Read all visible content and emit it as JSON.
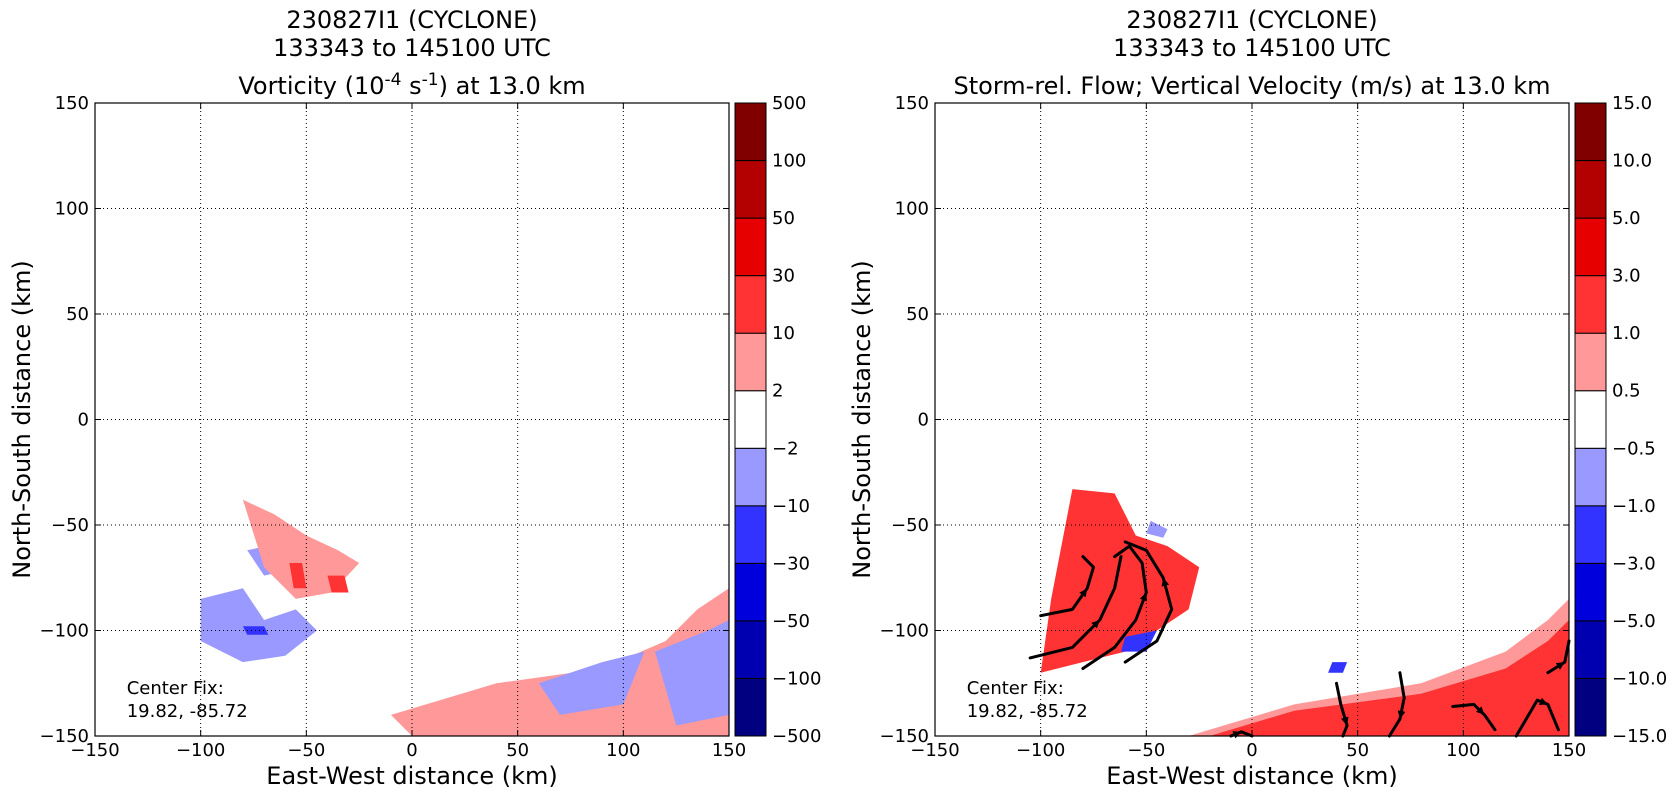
{
  "chart_data": [
    {
      "type": "heatmap",
      "title_lines": [
        "230827I1 (CYCLONE)",
        "133343 to 145100 UTC"
      ],
      "title_var": {
        "prefix": "Vorticity (10",
        "sup1": "-4",
        "mid": " s",
        "sup2": "-1",
        "suffix": ") at 13.0 km"
      },
      "xlabel": "East-West distance (km)",
      "ylabel": "North-South distance (km)",
      "xlim": [
        -150,
        150
      ],
      "ylim": [
        -150,
        150
      ],
      "xticks": [
        -150,
        -100,
        -50,
        0,
        50,
        100,
        150
      ],
      "yticks": [
        -150,
        -100,
        -50,
        0,
        50,
        100,
        150
      ],
      "xtick_labels": [
        "−150",
        "−100",
        "−50",
        "0",
        "50",
        "100",
        "150"
      ],
      "ytick_labels": [
        "−150",
        "−100",
        "−50",
        "0",
        "50",
        "100",
        "150"
      ],
      "grid": true,
      "annotation": [
        "Center Fix:",
        "19.82, -85.72"
      ],
      "colorbar": {
        "labels": [
          "−500",
          "−100",
          "−50",
          "−30",
          "−10",
          "−2",
          "2",
          "10",
          "30",
          "50",
          "100",
          "500"
        ],
        "colors": [
          "#000080",
          "#0000b0",
          "#0000dd",
          "#3333ff",
          "#9999ff",
          "#ffffff",
          "#ff9999",
          "#ff3333",
          "#e60000",
          "#b30000",
          "#800000"
        ]
      },
      "regions": [
        {
          "level": "neg-light",
          "x": [
            -100,
            -80,
            -70,
            -55,
            -45,
            -60,
            -80,
            -100
          ],
          "y": [
            -85,
            -80,
            -95,
            -90,
            -100,
            -112,
            -115,
            -105
          ]
        },
        {
          "level": "neg-light",
          "x": [
            -78,
            -60,
            -52,
            -70
          ],
          "y": [
            -62,
            -58,
            -70,
            -74
          ]
        },
        {
          "level": "pos-light",
          "x": [
            -80,
            -65,
            -50,
            -35,
            -25,
            -38,
            -55,
            -70
          ],
          "y": [
            -38,
            -45,
            -55,
            -62,
            -68,
            -82,
            -85,
            -70
          ]
        },
        {
          "level": "pos-mid",
          "x": [
            -58,
            -52,
            -50,
            -56
          ],
          "y": [
            -68,
            -68,
            -80,
            -80
          ]
        },
        {
          "level": "pos-mid",
          "x": [
            -40,
            -32,
            -30,
            -38
          ],
          "y": [
            -74,
            -74,
            -82,
            -82
          ]
        },
        {
          "level": "neg-mid",
          "x": [
            -80,
            -70,
            -68,
            -78
          ],
          "y": [
            -98,
            -98,
            -102,
            -102
          ]
        },
        {
          "level": "pos-light",
          "x": [
            -10,
            40,
            90,
            120,
            135,
            150,
            150,
            100,
            50,
            0
          ],
          "y": [
            -140,
            -125,
            -118,
            -105,
            -90,
            -80,
            -150,
            -150,
            -150,
            -150
          ]
        },
        {
          "level": "neg-light",
          "x": [
            60,
            90,
            110,
            100,
            70
          ],
          "y": [
            -125,
            -115,
            -110,
            -135,
            -140
          ]
        },
        {
          "level": "neg-light",
          "x": [
            115,
            140,
            150,
            150,
            125
          ],
          "y": [
            -110,
            -100,
            -95,
            -140,
            -145
          ]
        }
      ],
      "streamlines": []
    },
    {
      "type": "heatmap",
      "title_lines": [
        "230827I1 (CYCLONE)",
        "133343 to 145100 UTC"
      ],
      "title_var": {
        "prefix": "Storm-rel. Flow; Vertical Velocity (m/s) at 13.0 km",
        "sup1": "",
        "mid": "",
        "sup2": "",
        "suffix": ""
      },
      "xlabel": "East-West distance (km)",
      "ylabel": "North-South distance (km)",
      "xlim": [
        -150,
        150
      ],
      "ylim": [
        -150,
        150
      ],
      "xticks": [
        -150,
        -100,
        -50,
        0,
        50,
        100,
        150
      ],
      "yticks": [
        -150,
        -100,
        -50,
        0,
        50,
        100,
        150
      ],
      "xtick_labels": [
        "−150",
        "−100",
        "−50",
        "0",
        "50",
        "100",
        "150"
      ],
      "ytick_labels": [
        "−150",
        "−100",
        "−50",
        "0",
        "50",
        "100",
        "150"
      ],
      "grid": true,
      "annotation": [
        "Center Fix:",
        "19.82, -85.72"
      ],
      "colorbar": {
        "labels": [
          "−15.0",
          "−10.0",
          "−5.0",
          "−3.0",
          "−1.0",
          "−0.5",
          "0.5",
          "1.0",
          "3.0",
          "5.0",
          "10.0",
          "15.0"
        ],
        "colors": [
          "#000080",
          "#0000b0",
          "#0000dd",
          "#3333ff",
          "#9999ff",
          "#ffffff",
          "#ff9999",
          "#ff3333",
          "#e60000",
          "#b30000",
          "#800000"
        ]
      },
      "regions": [
        {
          "level": "pos-mid",
          "x": [
            -85,
            -65,
            -55,
            -40,
            -25,
            -30,
            -45,
            -60,
            -80,
            -100,
            -95
          ],
          "y": [
            -33,
            -35,
            -55,
            -60,
            -70,
            -90,
            -100,
            -110,
            -115,
            -120,
            -85
          ]
        },
        {
          "level": "neg-light",
          "x": [
            -48,
            -40,
            -42,
            -50
          ],
          "y": [
            -48,
            -52,
            -56,
            -54
          ]
        },
        {
          "level": "neg-mid",
          "x": [
            -60,
            -45,
            -50,
            -62
          ],
          "y": [
            -103,
            -100,
            -110,
            -110
          ]
        },
        {
          "level": "pos-light",
          "x": [
            -30,
            20,
            80,
            120,
            140,
            150,
            150,
            110,
            50,
            0,
            -30
          ],
          "y": [
            -150,
            -135,
            -125,
            -110,
            -95,
            -85,
            -150,
            -150,
            -150,
            -150,
            -150
          ]
        },
        {
          "level": "pos-mid",
          "x": [
            -20,
            20,
            80,
            120,
            140,
            150,
            150,
            110,
            60,
            10
          ],
          "y": [
            -150,
            -138,
            -130,
            -118,
            -105,
            -95,
            -150,
            -150,
            -150,
            -150
          ]
        },
        {
          "level": "neg-mid",
          "x": [
            38,
            45,
            43,
            36
          ],
          "y": [
            -115,
            -115,
            -120,
            -120
          ]
        }
      ],
      "streamlines": [
        {
          "x": [
            -100,
            -85,
            -78,
            -75,
            -80
          ],
          "y": [
            -93,
            -90,
            -80,
            -70,
            -65
          ]
        },
        {
          "x": [
            -105,
            -85,
            -72,
            -65,
            -62
          ],
          "y": [
            -113,
            -108,
            -95,
            -80,
            -65
          ]
        },
        {
          "x": [
            -80,
            -65,
            -55,
            -50,
            -52,
            -58,
            -65
          ],
          "y": [
            -118,
            -108,
            -95,
            -82,
            -68,
            -60,
            -65
          ]
        },
        {
          "x": [
            -60,
            -45,
            -38,
            -42,
            -50,
            -60
          ],
          "y": [
            -115,
            -105,
            -90,
            -75,
            -62,
            -58
          ]
        },
        {
          "x": [
            40,
            42,
            45,
            43
          ],
          "y": [
            -125,
            -135,
            -145,
            -150
          ]
        },
        {
          "x": [
            70,
            72,
            70,
            65
          ],
          "y": [
            -120,
            -132,
            -142,
            -150
          ]
        },
        {
          "x": [
            95,
            105,
            110,
            115
          ],
          "y": [
            -136,
            -135,
            -140,
            -147
          ]
        },
        {
          "x": [
            125,
            135,
            140,
            145
          ],
          "y": [
            -150,
            -133,
            -135,
            -147
          ]
        },
        {
          "x": [
            140,
            148,
            150
          ],
          "y": [
            -120,
            -115,
            -105
          ]
        },
        {
          "x": [
            -10,
            -5,
            0
          ],
          "y": [
            -150,
            -148,
            -150
          ]
        }
      ]
    }
  ]
}
